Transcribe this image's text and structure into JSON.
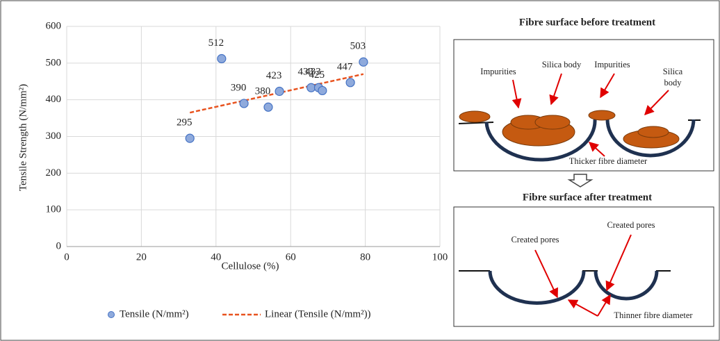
{
  "chart_data": {
    "type": "scatter",
    "xlabel": "Cellulose (%)",
    "ylabel": "Tensile Strength (N/mm²)",
    "xlim": [
      0,
      100
    ],
    "xticks": [
      0,
      20,
      40,
      60,
      80,
      100
    ],
    "ylim": [
      0,
      600
    ],
    "yticks": [
      0,
      100,
      200,
      300,
      400,
      500,
      600
    ],
    "grid": true,
    "legend": "bottom",
    "series": [
      {
        "name": "Tensile (N/mm²)",
        "color": "#8faadc",
        "x": [
          33,
          41.5,
          47.5,
          54,
          57,
          65.5,
          67.5,
          68.5,
          76,
          79.5
        ],
        "values": [
          295,
          512,
          390,
          380,
          423,
          433,
          433,
          425,
          447,
          503
        ]
      }
    ],
    "trendline": {
      "name": "Linear (Tensile (N/mm²))",
      "color": "#e8531f",
      "x": [
        33,
        79.5
      ],
      "values": [
        365,
        470
      ]
    }
  },
  "diagrams": {
    "before": {
      "title": "Fibre surface before treatment",
      "labels": [
        "Impurities",
        "Silica body",
        "Impurities",
        "Silica",
        "body",
        "Thicker fibre diameter"
      ]
    },
    "after": {
      "title": "Fibre surface after treatment",
      "labels": [
        "Created pores",
        "Created pores",
        "Thinner fibre diameter"
      ]
    }
  }
}
